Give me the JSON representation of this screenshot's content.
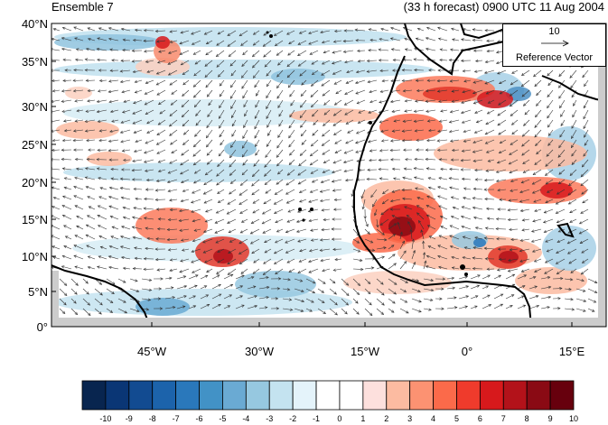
{
  "header": {
    "left_title": "Ensemble 7",
    "right_title": "(33 h forecast) 0900 UTC 11 Aug 2004"
  },
  "axes": {
    "lat_labels": [
      "40°N",
      "35°N",
      "30°N",
      "25°N",
      "20°N",
      "15°N",
      "10°N",
      "5°N",
      "0°"
    ],
    "lon_labels": [
      "45°W",
      "30°W",
      "15°W",
      "0°",
      "15°E"
    ]
  },
  "reference_vector": {
    "magnitude": "10",
    "label": "Reference Vector"
  },
  "colorbar": {
    "ticks": [
      "-10",
      "-9",
      "-8",
      "-7",
      "-6",
      "-5",
      "-4",
      "-3",
      "-2",
      "-1",
      "0",
      "1",
      "2",
      "3",
      "4",
      "5",
      "6",
      "7",
      "8",
      "9",
      "10"
    ],
    "colors": [
      "#08254f",
      "#0a3675",
      "#124b91",
      "#1c63ab",
      "#2a78bb",
      "#4292c6",
      "#6aaad3",
      "#96c8e0",
      "#c4e3f0",
      "#e4f3fa",
      "#ffffff",
      "#ffffff",
      "#fde0dd",
      "#fcbba1",
      "#fc9272",
      "#fb6a4a",
      "#ef3b2c",
      "#d7191c",
      "#b3121a",
      "#8a0a14",
      "#67000d"
    ]
  }
}
